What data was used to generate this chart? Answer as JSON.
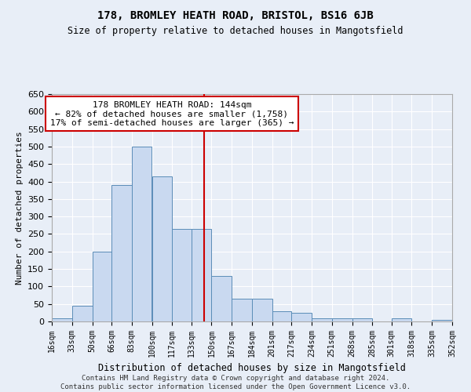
{
  "title": "178, BROMLEY HEATH ROAD, BRISTOL, BS16 6JB",
  "subtitle": "Size of property relative to detached houses in Mangotsfield",
  "xlabel": "Distribution of detached houses by size in Mangotsfield",
  "ylabel": "Number of detached properties",
  "bin_edges": [
    16,
    33,
    50,
    66,
    83,
    100,
    117,
    133,
    150,
    167,
    184,
    201,
    217,
    234,
    251,
    268,
    285,
    301,
    318,
    335,
    352
  ],
  "bin_labels": [
    "16sqm",
    "33sqm",
    "50sqm",
    "66sqm",
    "83sqm",
    "100sqm",
    "117sqm",
    "133sqm",
    "150sqm",
    "167sqm",
    "184sqm",
    "201sqm",
    "217sqm",
    "234sqm",
    "251sqm",
    "268sqm",
    "285sqm",
    "301sqm",
    "318sqm",
    "335sqm",
    "352sqm"
  ],
  "bar_heights": [
    10,
    45,
    200,
    390,
    500,
    415,
    265,
    265,
    130,
    65,
    65,
    30,
    25,
    10,
    10,
    10,
    0,
    10,
    0,
    5
  ],
  "bar_color": "#c9d9f0",
  "bar_edge_color": "#5b8db8",
  "vline_x": 144,
  "vline_color": "#cc0000",
  "annotation_text": "178 BROMLEY HEATH ROAD: 144sqm\n← 82% of detached houses are smaller (1,758)\n17% of semi-detached houses are larger (365) →",
  "annotation_box_color": "#ffffff",
  "annotation_box_edge": "#cc0000",
  "ylim": [
    0,
    650
  ],
  "yticks": [
    0,
    50,
    100,
    150,
    200,
    250,
    300,
    350,
    400,
    450,
    500,
    550,
    600,
    650
  ],
  "background_color": "#e8eef7",
  "grid_color": "#ffffff",
  "footer_line1": "Contains HM Land Registry data © Crown copyright and database right 2024.",
  "footer_line2": "Contains public sector information licensed under the Open Government Licence v3.0."
}
